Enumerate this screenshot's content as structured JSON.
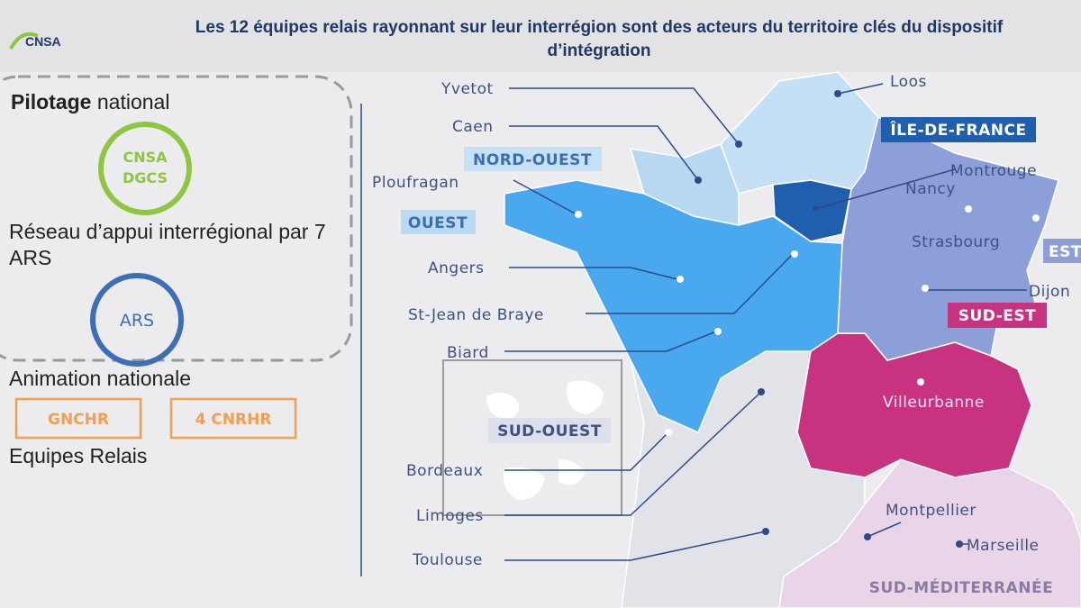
{
  "header": {
    "logo": "CNSA",
    "title": "Les 12 équipes relais rayonnant sur leur interrégion sont des acteurs du territoire clés du dispositif d’intégration"
  },
  "left_panel": {
    "pilotage_bold": "Pilotage",
    "pilotage_rest": "national",
    "circle1": [
      "CNSA",
      "DGCS"
    ],
    "reseau": "Réseau d’appui interrégional par 7 ARS",
    "circle2": "ARS",
    "animation": "Animation nationale",
    "boxes": [
      "GNCHR",
      "4 CNRHR"
    ],
    "equipes": "Equipes Relais"
  },
  "map": {
    "regions": [
      "NORD-OUEST",
      "OUEST",
      "ÎLE-DE-FRANCE",
      "EST",
      "SUD-EST",
      "SUD-OUEST",
      "SUD-MÉDITERRANÉE"
    ],
    "cities": [
      "Yvetot",
      "Caen",
      "Ploufragan",
      "Angers",
      "St-Jean de Braye",
      "Biard",
      "Bordeaux",
      "Limoges",
      "Toulouse",
      "Loos",
      "Montrouge",
      "Nancy",
      "Strasbourg",
      "Dijon",
      "Villeurbanne",
      "Montpellier",
      "Marseille"
    ]
  }
}
